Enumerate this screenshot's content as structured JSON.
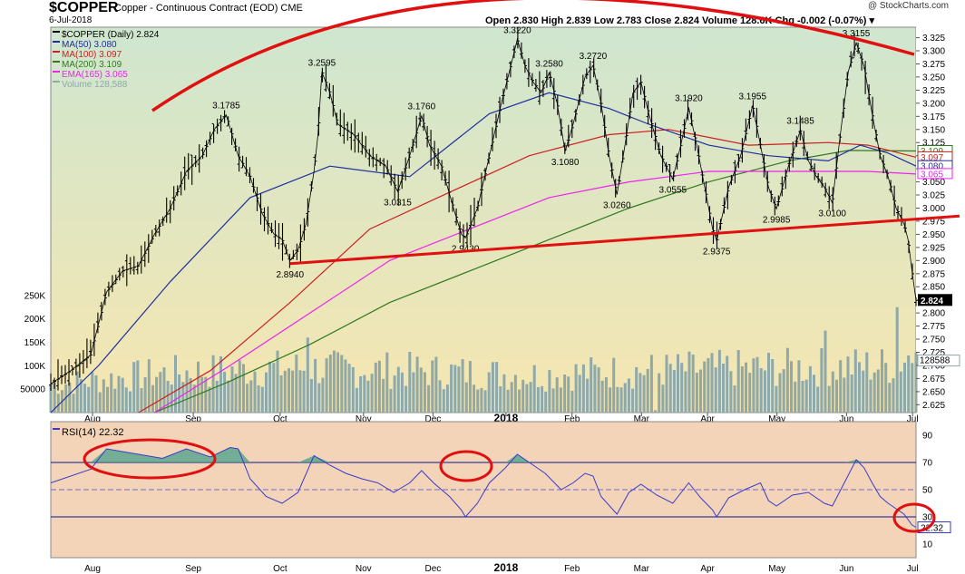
{
  "header": {
    "symbol": "$COPPER",
    "name": "Copper - Continuous Contract (EOD)",
    "exchange": "CME",
    "date": "6-Jul-2018",
    "watermark": "@ StockCharts.com",
    "ohlc": "Open 2.830  High 2.839  Low 2.783  Close 2.824  Volume 128.6K  Chg -0.002 (-0.07%) ▾"
  },
  "colors": {
    "price_bg_top": "#cfe6cf",
    "price_bg_bottom": "#f6e6b0",
    "rsi_bg": "#f3d4b8",
    "ma50": "#1f2fa0",
    "ma100": "#cc2020",
    "ma200": "#2f7a1f",
    "ema165": "#ee22ee",
    "volume": "#8fa8a8",
    "annotation": "#e01010"
  },
  "chart_data": [
    {
      "type": "line",
      "title": "$COPPER Copper - Continuous Contract (EOD) CME",
      "legend": [
        {
          "text": "$COPPER (Daily) 2.824",
          "color": "#000000"
        },
        {
          "text": "MA(50) 3.080",
          "color": "#1f2fa0"
        },
        {
          "text": "MA(100) 3.097",
          "color": "#cc2020"
        },
        {
          "text": "MA(200) 3.109",
          "color": "#2f7a1f"
        },
        {
          "text": "EMA(165) 3.065",
          "color": "#ee22ee"
        },
        {
          "text": "Volume 128,588",
          "color": "#8fa8a8"
        }
      ],
      "legend_position": "top-left",
      "x_ticks": [
        "Aug",
        "Sep",
        "Oct",
        "Nov",
        "Dec",
        "2018",
        "Feb",
        "Mar",
        "Apr",
        "May",
        "Jun",
        "Jul"
      ],
      "y_ticks": [
        "3.325",
        "3.300",
        "3.275",
        "3.250",
        "3.225",
        "3.200",
        "3.175",
        "3.150",
        "3.125",
        "3.100",
        "3.075",
        "3.050",
        "3.025",
        "3.000",
        "2.975",
        "2.950",
        "2.925",
        "2.900",
        "2.875",
        "2.850",
        "2.825",
        "2.800",
        "2.775",
        "2.750",
        "2.725",
        "2.700",
        "2.675",
        "2.650",
        "2.625"
      ],
      "ylim": [
        2.61,
        3.345
      ],
      "volume_ticks": [
        "250K",
        "200K",
        "150K",
        "100K",
        "50000"
      ],
      "volume_ylim": [
        0,
        300000
      ],
      "grid": false,
      "price_path": [
        [
          0,
          2.665
        ],
        [
          5,
          2.69
        ],
        [
          10,
          2.72
        ],
        [
          14,
          2.84
        ],
        [
          18,
          2.88
        ],
        [
          22,
          2.89
        ],
        [
          26,
          2.95
        ],
        [
          30,
          3.0
        ],
        [
          34,
          3.07
        ],
        [
          38,
          3.1
        ],
        [
          41,
          3.15
        ],
        [
          44,
          3.178
        ],
        [
          47,
          3.1
        ],
        [
          50,
          3.06
        ],
        [
          53,
          2.99
        ],
        [
          56,
          2.95
        ],
        [
          58,
          2.94
        ],
        [
          60,
          2.9
        ],
        [
          62,
          2.92
        ],
        [
          64,
          2.97
        ],
        [
          66,
          3.07
        ],
        [
          67,
          3.14
        ],
        [
          68,
          3.2595
        ],
        [
          70,
          3.22
        ],
        [
          72,
          3.16
        ],
        [
          76,
          3.14
        ],
        [
          80,
          3.1
        ],
        [
          84,
          3.08
        ],
        [
          87,
          3.0315
        ],
        [
          90,
          3.1
        ],
        [
          93,
          3.176
        ],
        [
          95,
          3.12
        ],
        [
          98,
          3.08
        ],
        [
          101,
          3.0
        ],
        [
          103,
          2.95
        ],
        [
          104,
          2.943
        ],
        [
          107,
          3.0
        ],
        [
          110,
          3.1
        ],
        [
          113,
          3.2
        ],
        [
          115,
          3.26
        ],
        [
          117,
          3.322
        ],
        [
          119,
          3.27
        ],
        [
          121,
          3.24
        ],
        [
          123,
          3.22
        ],
        [
          125,
          3.258
        ],
        [
          127,
          3.2
        ],
        [
          129,
          3.108
        ],
        [
          131,
          3.16
        ],
        [
          134,
          3.25
        ],
        [
          136,
          3.272
        ],
        [
          138,
          3.2
        ],
        [
          140,
          3.1
        ],
        [
          142,
          3.026
        ],
        [
          144,
          3.12
        ],
        [
          146,
          3.22
        ],
        [
          148,
          3.24
        ],
        [
          150,
          3.18
        ],
        [
          153,
          3.1
        ],
        [
          156,
          3.0555
        ],
        [
          158,
          3.12
        ],
        [
          160,
          3.192
        ],
        [
          162,
          3.12
        ],
        [
          164,
          3.04
        ],
        [
          166,
          2.96
        ],
        [
          167,
          2.9375
        ],
        [
          170,
          3.04
        ],
        [
          173,
          3.1
        ],
        [
          176,
          3.1955
        ],
        [
          178,
          3.12
        ],
        [
          180,
          3.04
        ],
        [
          182,
          2.9985
        ],
        [
          185,
          3.08
        ],
        [
          188,
          3.1485
        ],
        [
          190,
          3.09
        ],
        [
          192,
          3.06
        ],
        [
          194,
          3.04
        ],
        [
          196,
          3.01
        ],
        [
          198,
          3.14
        ],
        [
          200,
          3.26
        ],
        [
          202,
          3.3155
        ],
        [
          204,
          3.27
        ],
        [
          206,
          3.18
        ],
        [
          208,
          3.1
        ],
        [
          210,
          3.06
        ],
        [
          212,
          3.0
        ],
        [
          214,
          2.97
        ],
        [
          215,
          2.94
        ],
        [
          216,
          2.88
        ],
        [
          217,
          2.824
        ]
      ],
      "ma50_path": [
        [
          0,
          2.61
        ],
        [
          12,
          2.7
        ],
        [
          30,
          2.86
        ],
        [
          50,
          3.02
        ],
        [
          70,
          3.08
        ],
        [
          90,
          3.06
        ],
        [
          110,
          3.18
        ],
        [
          125,
          3.22
        ],
        [
          140,
          3.19
        ],
        [
          150,
          3.16
        ],
        [
          165,
          3.12
        ],
        [
          180,
          3.1
        ],
        [
          195,
          3.09
        ],
        [
          203,
          3.12
        ],
        [
          210,
          3.105
        ],
        [
          217,
          3.08
        ]
      ],
      "ma100_path": [
        [
          22,
          2.61
        ],
        [
          40,
          2.69
        ],
        [
          60,
          2.82
        ],
        [
          80,
          2.96
        ],
        [
          100,
          3.03
        ],
        [
          120,
          3.1
        ],
        [
          140,
          3.14
        ],
        [
          155,
          3.15
        ],
        [
          175,
          3.12
        ],
        [
          195,
          3.125
        ],
        [
          205,
          3.12
        ],
        [
          217,
          3.097
        ]
      ],
      "ma200_path": [
        [
          26,
          2.61
        ],
        [
          45,
          2.67
        ],
        [
          65,
          2.74
        ],
        [
          85,
          2.82
        ],
        [
          105,
          2.88
        ],
        [
          125,
          2.94
        ],
        [
          145,
          3.0
        ],
        [
          165,
          3.05
        ],
        [
          185,
          3.09
        ],
        [
          200,
          3.11
        ],
        [
          217,
          3.109
        ]
      ],
      "ema165_path": [
        [
          26,
          2.61
        ],
        [
          45,
          2.7
        ],
        [
          65,
          2.8
        ],
        [
          85,
          2.9
        ],
        [
          105,
          2.96
        ],
        [
          125,
          3.02
        ],
        [
          145,
          3.05
        ],
        [
          165,
          3.07
        ],
        [
          185,
          3.07
        ],
        [
          205,
          3.07
        ],
        [
          217,
          3.065
        ]
      ],
      "volume_profile": [
        [
          0,
          60000
        ],
        [
          30,
          85000
        ],
        [
          60,
          95000
        ],
        [
          90,
          90000
        ],
        [
          120,
          80000
        ],
        [
          150,
          90000
        ],
        [
          180,
          95000
        ],
        [
          210,
          100000
        ],
        [
          217,
          128588
        ]
      ],
      "last_value_label": "2.824",
      "last_volume_label": "128588",
      "ma_value_labels": [
        "3.109",
        "3.097",
        "3.080",
        "3.065"
      ],
      "peak_labels": [
        {
          "t": 44,
          "v": 3.1785,
          "text": "3.1785",
          "pos": "above"
        },
        {
          "t": 68,
          "v": 3.2595,
          "text": "3.2595",
          "pos": "above"
        },
        {
          "t": 93,
          "v": 3.176,
          "text": "3.1760",
          "pos": "above"
        },
        {
          "t": 117,
          "v": 3.322,
          "text": "3.3220",
          "pos": "above"
        },
        {
          "t": 125,
          "v": 3.258,
          "text": "3.2580",
          "pos": "above"
        },
        {
          "t": 136,
          "v": 3.272,
          "text": "3.2720",
          "pos": "above"
        },
        {
          "t": 160,
          "v": 3.192,
          "text": "3.1920",
          "pos": "above"
        },
        {
          "t": 176,
          "v": 3.1955,
          "text": "3.1955",
          "pos": "above"
        },
        {
          "t": 188,
          "v": 3.1485,
          "text": "3.1485",
          "pos": "above"
        },
        {
          "t": 202,
          "v": 3.3155,
          "text": "3.3155",
          "pos": "above"
        },
        {
          "t": 87,
          "v": 3.0315,
          "text": "3.0315",
          "pos": "below"
        },
        {
          "t": 104,
          "v": 2.943,
          "text": "2.9430",
          "pos": "below"
        },
        {
          "t": 129,
          "v": 3.108,
          "text": "3.1080",
          "pos": "below"
        },
        {
          "t": 142,
          "v": 3.026,
          "text": "3.0260",
          "pos": "below"
        },
        {
          "t": 156,
          "v": 3.0555,
          "text": "3.0555",
          "pos": "below"
        },
        {
          "t": 167,
          "v": 2.9375,
          "text": "2.9375",
          "pos": "below"
        },
        {
          "t": 182,
          "v": 2.9985,
          "text": "2.9985",
          "pos": "below"
        },
        {
          "t": 196,
          "v": 3.01,
          "text": "3.0100",
          "pos": "below"
        },
        {
          "t": 60,
          "v": 2.894,
          "text": "2.8940",
          "pos": "below"
        }
      ],
      "trendlines": [
        {
          "from": [
            60,
            2.894
          ],
          "to": [
            226,
            2.985
          ],
          "color": "#e01010"
        }
      ]
    },
    {
      "type": "line",
      "legend": [
        {
          "text": "RSI(14) 22.32",
          "color": "#000000"
        }
      ],
      "y_ticks": [
        "90",
        "70",
        "50",
        "30",
        "10"
      ],
      "ylim": [
        0,
        100
      ],
      "reference_lines": [
        70,
        50,
        30
      ],
      "last_value_label": "22.32",
      "rsi_path": [
        [
          0,
          55
        ],
        [
          10,
          65
        ],
        [
          14,
          80
        ],
        [
          20,
          77
        ],
        [
          28,
          73
        ],
        [
          34,
          80
        ],
        [
          40,
          74
        ],
        [
          45,
          81
        ],
        [
          47,
          80
        ],
        [
          50,
          58
        ],
        [
          54,
          45
        ],
        [
          58,
          40
        ],
        [
          62,
          48
        ],
        [
          66,
          75
        ],
        [
          70,
          68
        ],
        [
          74,
          62
        ],
        [
          78,
          58
        ],
        [
          82,
          55
        ],
        [
          86,
          48
        ],
        [
          90,
          55
        ],
        [
          93,
          64
        ],
        [
          96,
          55
        ],
        [
          100,
          45
        ],
        [
          103,
          35
        ],
        [
          104,
          30
        ],
        [
          107,
          40
        ],
        [
          110,
          55
        ],
        [
          114,
          66
        ],
        [
          117,
          76
        ],
        [
          120,
          70
        ],
        [
          124,
          62
        ],
        [
          128,
          50
        ],
        [
          131,
          55
        ],
        [
          134,
          62
        ],
        [
          136,
          60
        ],
        [
          138,
          45
        ],
        [
          142,
          32
        ],
        [
          145,
          48
        ],
        [
          148,
          54
        ],
        [
          152,
          46
        ],
        [
          156,
          40
        ],
        [
          160,
          55
        ],
        [
          163,
          44
        ],
        [
          166,
          35
        ],
        [
          167,
          30
        ],
        [
          170,
          44
        ],
        [
          174,
          50
        ],
        [
          178,
          55
        ],
        [
          180,
          42
        ],
        [
          182,
          38
        ],
        [
          186,
          46
        ],
        [
          190,
          48
        ],
        [
          194,
          40
        ],
        [
          196,
          38
        ],
        [
          199,
          55
        ],
        [
          202,
          72
        ],
        [
          204,
          66
        ],
        [
          206,
          55
        ],
        [
          208,
          45
        ],
        [
          210,
          40
        ],
        [
          212,
          36
        ],
        [
          214,
          32
        ],
        [
          216,
          24
        ],
        [
          217,
          22.32
        ]
      ]
    }
  ]
}
